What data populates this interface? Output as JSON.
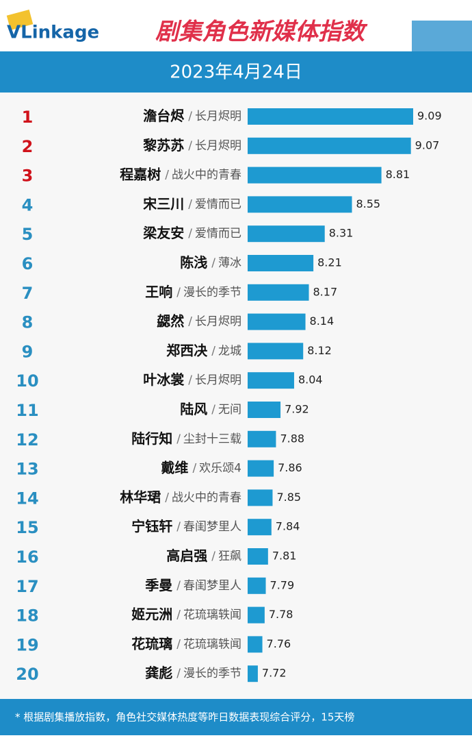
{
  "logo": "VLinkage",
  "chart_data": {
    "type": "bar",
    "orientation": "horizontal",
    "title": "剧集角色新媒体指数",
    "subtitle": "2023年4月24日",
    "ranks": [
      1,
      2,
      3,
      4,
      5,
      6,
      7,
      8,
      9,
      10,
      11,
      12,
      13,
      14,
      15,
      16,
      17,
      18,
      19,
      20
    ],
    "categories": [
      "澹台烬",
      "黎苏苏",
      "程嘉树",
      "宋三川",
      "梁友安",
      "陈浅",
      "王响",
      "勰然",
      "郑西决",
      "叶冰裳",
      "陆风",
      "陆行知",
      "戴维",
      "林华珺",
      "宁钰轩",
      "高启强",
      "季曼",
      "姬元洲",
      "花琉璃",
      "龚彪"
    ],
    "separator": "/",
    "shows": [
      "长月烬明",
      "长月烬明",
      "战火中的青春",
      "爱情而已",
      "爱情而已",
      "薄冰",
      "漫长的季节",
      "长月烬明",
      "龙城",
      "长月烬明",
      "无间",
      "尘封十三载",
      "欢乐颂4",
      "战火中的青春",
      "春闺梦里人",
      "狂飙",
      "春闺梦里人",
      "花琉璃轶闻",
      "花琉璃轶闻",
      "漫长的季节"
    ],
    "values": [
      9.09,
      9.07,
      8.81,
      8.55,
      8.31,
      8.21,
      8.17,
      8.14,
      8.12,
      8.04,
      7.92,
      7.88,
      7.86,
      7.85,
      7.84,
      7.81,
      7.79,
      7.78,
      7.76,
      7.72
    ],
    "xlim": [
      7.63,
      9.09
    ],
    "color": "#1e9ad1",
    "rank_color": "#2a8fc1",
    "top_rank_color": "#d0121b",
    "top_ranks": 3,
    "footnote": "* 根据剧集播放指数，角色社交媒体热度等昨日数据表现综合评分，15天榜"
  }
}
